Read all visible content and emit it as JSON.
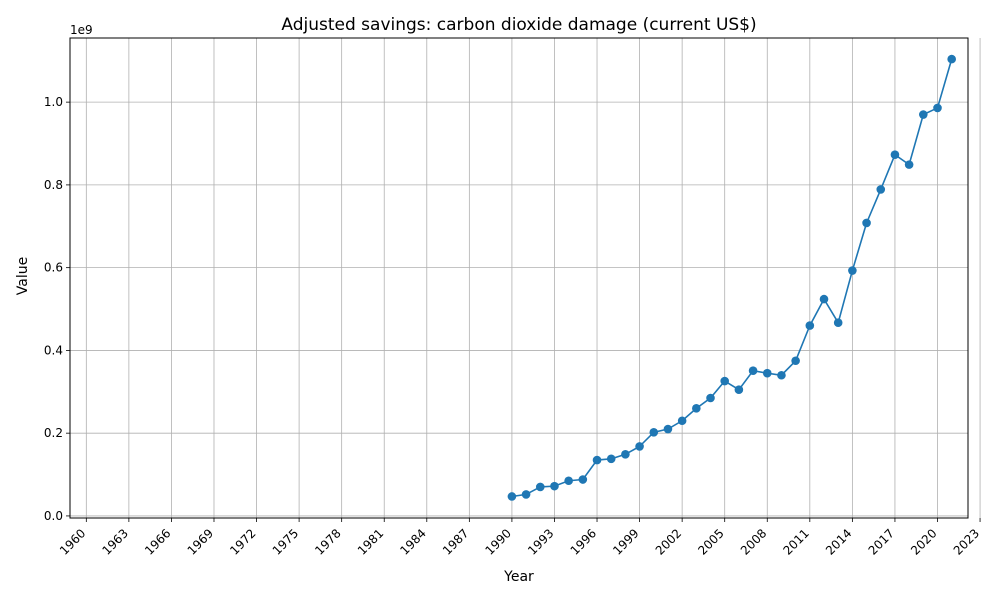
{
  "chart_data": {
    "type": "line",
    "title": "Adjusted savings: carbon dioxide damage (current US$)",
    "xlabel": "Year",
    "ylabel": "Value",
    "offset_label": "1e9",
    "xlim": [
      1958.85,
      2022.15
    ],
    "ylim": [
      -5000000,
      1155000000
    ],
    "x_ticks": [
      "1960",
      "1963",
      "1966",
      "1969",
      "1972",
      "1975",
      "1978",
      "1981",
      "1984",
      "1987",
      "1990",
      "1993",
      "1996",
      "1999",
      "2002",
      "2005",
      "2008",
      "2011",
      "2014",
      "2017",
      "2020",
      "2023"
    ],
    "y_ticks": [
      {
        "value": 0,
        "label": "0.0"
      },
      {
        "value": 200000000,
        "label": "0.2"
      },
      {
        "value": 400000000,
        "label": "0.4"
      },
      {
        "value": 600000000,
        "label": "0.6"
      },
      {
        "value": 800000000,
        "label": "0.8"
      },
      {
        "value": 1000000000,
        "label": "1.0"
      }
    ],
    "grid": true,
    "color": "#1f77b4",
    "series": [
      {
        "x": [
          1990,
          1991,
          1992,
          1993,
          1994,
          1995,
          1996,
          1997,
          1998,
          1999,
          2000,
          2001,
          2002,
          2003,
          2004,
          2005,
          2006,
          2007,
          2008,
          2009,
          2010,
          2011,
          2012,
          2013,
          2014,
          2015,
          2016,
          2017,
          2018,
          2019,
          2020,
          2021
        ],
        "values": [
          47000000,
          52000000,
          70000000,
          72000000,
          85000000,
          88000000,
          135000000,
          138000000,
          149000000,
          168000000,
          202000000,
          210000000,
          230000000,
          260000000,
          285000000,
          326000000,
          305000000,
          351000000,
          345000000,
          340000000,
          375000000,
          460000000,
          524000000,
          467000000,
          593000000,
          708000000,
          789000000,
          873000000,
          849000000,
          970000000,
          986000000,
          1104000000
        ]
      }
    ]
  }
}
